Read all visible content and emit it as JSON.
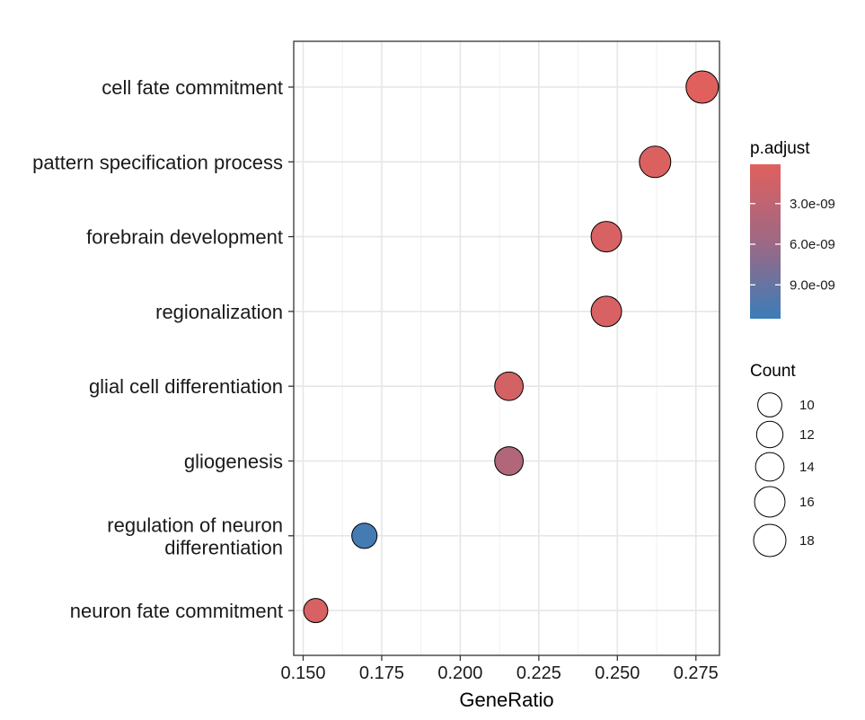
{
  "chart_data": {
    "type": "scatter",
    "title": "",
    "xlabel": "GeneRatio",
    "ylabel": "",
    "xlim": [
      0.147,
      0.2825
    ],
    "x_ticks": [
      "0.150",
      "0.175",
      "0.200",
      "0.225",
      "0.250",
      "0.275"
    ],
    "x_tick_values": [
      0.15,
      0.175,
      0.2,
      0.225,
      0.25,
      0.275
    ],
    "grid": true,
    "legend_position": "right",
    "categories": [
      "cell fate commitment",
      "pattern specification process",
      "forebrain development",
      "regionalization",
      "glial cell differentiation",
      "gliogenesis",
      "regulation of neuron\ndifferentiation",
      "neuron fate commitment"
    ],
    "points": [
      {
        "label": "cell fate commitment",
        "x": 0.277,
        "count": 18,
        "p_adjust": 1e-10
      },
      {
        "label": "pattern specification process",
        "x": 0.262,
        "count": 17,
        "p_adjust": 5e-10
      },
      {
        "label": "forebrain development",
        "x": 0.2465,
        "count": 16,
        "p_adjust": 8e-10
      },
      {
        "label": "regionalization",
        "x": 0.2465,
        "count": 16,
        "p_adjust": 8e-10
      },
      {
        "label": "glial cell differentiation",
        "x": 0.2155,
        "count": 14,
        "p_adjust": 1.2e-09
      },
      {
        "label": "gliogenesis",
        "x": 0.2155,
        "count": 14,
        "p_adjust": 4.2e-09
      },
      {
        "label": "regulation of neuron\ndifferentiation",
        "x": 0.1695,
        "count": 11,
        "p_adjust": 1.1e-08
      },
      {
        "label": "neuron fate commitment",
        "x": 0.154,
        "count": 10,
        "p_adjust": 9e-10
      }
    ],
    "color_legend": {
      "title": "p.adjust",
      "min": 1e-10,
      "max": 1.15e-08,
      "low_color": "#E0605E",
      "high_color": "#3B7DB8",
      "ticks": [
        "3.0e-09",
        "6.0e-09",
        "9.0e-09"
      ],
      "tick_values": [
        3e-09,
        6e-09,
        9e-09
      ]
    },
    "size_legend": {
      "title": "Count",
      "labels": [
        "10",
        "12",
        "14",
        "16",
        "18"
      ],
      "values": [
        10,
        12,
        14,
        16,
        18
      ]
    }
  }
}
